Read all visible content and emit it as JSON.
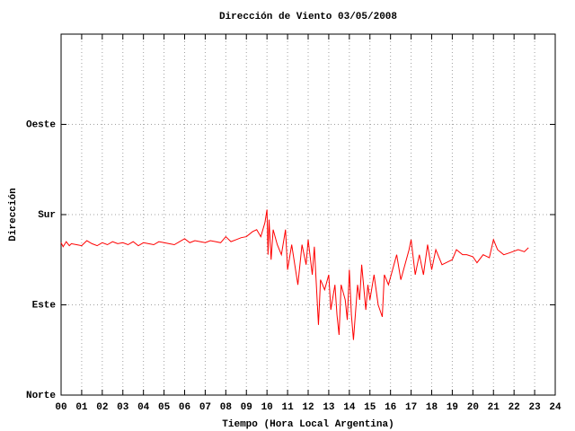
{
  "chart_data": {
    "type": "line",
    "title": "Dirección de Viento 03/05/2008",
    "xlabel": "Tiempo (Hora Local Argentina)",
    "ylabel": "Dirección",
    "color": "#ff0000",
    "grid": true,
    "xlim": [
      0,
      24
    ],
    "ylim": [
      0,
      360
    ],
    "xticks": [
      {
        "value": 0,
        "label": "00"
      },
      {
        "value": 1,
        "label": "01"
      },
      {
        "value": 2,
        "label": "02"
      },
      {
        "value": 3,
        "label": "03"
      },
      {
        "value": 4,
        "label": "04"
      },
      {
        "value": 5,
        "label": "05"
      },
      {
        "value": 6,
        "label": "06"
      },
      {
        "value": 7,
        "label": "07"
      },
      {
        "value": 8,
        "label": "08"
      },
      {
        "value": 9,
        "label": "09"
      },
      10,
      11,
      12,
      13,
      14,
      15,
      16,
      17,
      18,
      19,
      20,
      21,
      22,
      23,
      24
    ],
    "yticks": [
      {
        "value": 0,
        "label": "Norte"
      },
      {
        "value": 90,
        "label": "Este"
      },
      {
        "value": 180,
        "label": "Sur"
      },
      {
        "value": 270,
        "label": "Oeste"
      }
    ],
    "x": [
      0,
      0.1,
      0.25,
      0.4,
      0.5,
      0.75,
      1,
      1.25,
      1.5,
      1.75,
      2,
      2.25,
      2.5,
      2.75,
      3,
      3.25,
      3.5,
      3.75,
      4,
      4.25,
      4.5,
      4.75,
      5,
      5.25,
      5.5,
      5.75,
      6,
      6.25,
      6.5,
      6.75,
      7,
      7.25,
      7.5,
      7.75,
      8,
      8.25,
      8.5,
      8.75,
      9,
      9.3,
      9.5,
      9.7,
      9.9,
      10,
      10.05,
      10.1,
      10.2,
      10.3,
      10.5,
      10.7,
      10.9,
      11,
      11.2,
      11.5,
      11.7,
      11.9,
      12,
      12.2,
      12.3,
      12.5,
      12.6,
      12.8,
      13,
      13.1,
      13.3,
      13.4,
      13.5,
      13.6,
      13.8,
      13.9,
      14,
      14.1,
      14.2,
      14.4,
      14.5,
      14.6,
      14.8,
      14.9,
      15,
      15.2,
      15.4,
      15.6,
      15.7,
      15.9,
      16.1,
      16.3,
      16.5,
      16.7,
      16.9,
      17,
      17.2,
      17.4,
      17.6,
      17.8,
      18,
      18.2,
      18.5,
      18.8,
      19,
      19.2,
      19.5,
      19.7,
      20,
      20.2,
      20.5,
      20.8,
      21,
      21.2,
      21.5,
      21.8,
      22.2,
      22.5,
      22.7
    ],
    "values": [
      152,
      148,
      153,
      149,
      151,
      150,
      149,
      154,
      151,
      149,
      152,
      150,
      153,
      151,
      152,
      150,
      153,
      149,
      152,
      151,
      150,
      153,
      152,
      151,
      150,
      153,
      156,
      152,
      154,
      153,
      152,
      154,
      153,
      152,
      158,
      153,
      155,
      157,
      158,
      163,
      165,
      158,
      172,
      185,
      140,
      175,
      135,
      165,
      150,
      140,
      165,
      125,
      150,
      110,
      150,
      130,
      155,
      120,
      148,
      70,
      115,
      105,
      120,
      85,
      110,
      80,
      60,
      110,
      95,
      75,
      125,
      80,
      55,
      110,
      95,
      130,
      85,
      110,
      95,
      120,
      90,
      78,
      120,
      110,
      125,
      140,
      115,
      130,
      145,
      155,
      120,
      140,
      120,
      150,
      125,
      145,
      130,
      133,
      135,
      145,
      140,
      140,
      138,
      132,
      140,
      137,
      155,
      145,
      140,
      142,
      145,
      143,
      147
    ]
  }
}
